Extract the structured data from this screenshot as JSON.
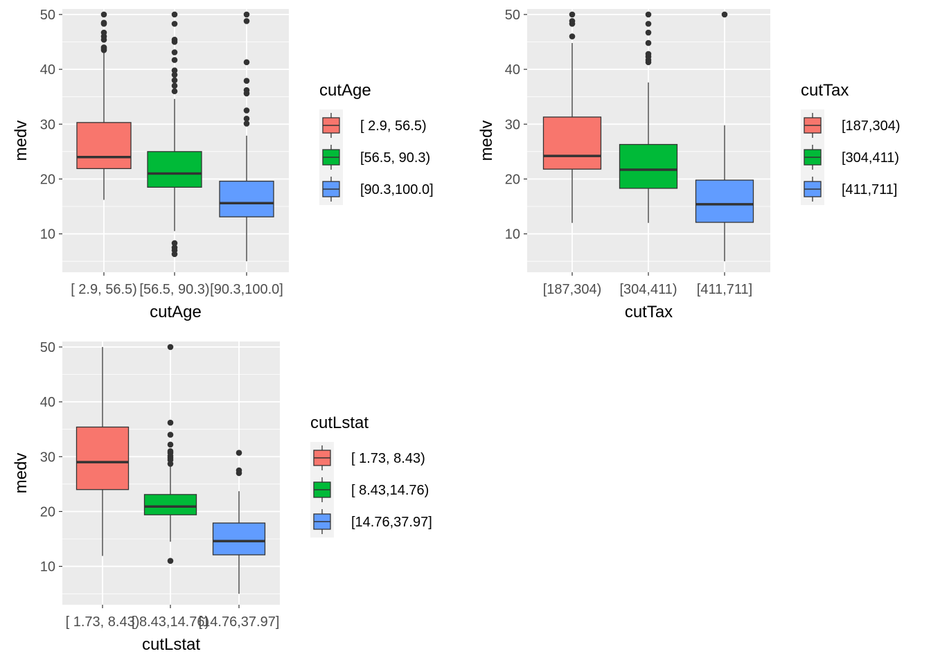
{
  "chart_data": [
    {
      "type": "boxplot",
      "xlabel": "cutAge",
      "ylabel": "medv",
      "ylim": [
        3,
        51
      ],
      "yticks": [
        10,
        20,
        30,
        40,
        50
      ],
      "grid": true,
      "legend": {
        "title": "cutAge",
        "position": "right"
      },
      "categories": [
        "[ 2.9, 56.5)",
        "[56.5, 90.3)",
        "[90.3,100.0]"
      ],
      "colors": [
        "#F8766D",
        "#00BA38",
        "#619CFF"
      ],
      "boxes": [
        {
          "q1": 21.9,
          "median": 24.0,
          "q3": 30.3,
          "whisker_low": 16.2,
          "whisker_high": 43.1,
          "outliers": [
            43.5,
            43.8,
            44.0,
            45.4,
            46.0,
            46.7,
            48.3,
            48.5,
            50.0
          ]
        },
        {
          "q1": 18.5,
          "median": 21.0,
          "q3": 25.0,
          "whisker_low": 10.5,
          "whisker_high": 34.6,
          "outliers": [
            6.3,
            7.0,
            7.5,
            8.3,
            36.0,
            37.0,
            38.0,
            39.0,
            39.8,
            41.7,
            43.1,
            45.0,
            45.4,
            48.3,
            50.0
          ]
        },
        {
          "q1": 13.1,
          "median": 15.6,
          "q3": 19.6,
          "whisker_low": 5.0,
          "whisker_high": 27.9,
          "outliers": [
            30.1,
            31.0,
            32.5,
            35.6,
            36.2,
            37.9,
            41.3,
            48.8,
            50.0
          ]
        }
      ]
    },
    {
      "type": "boxplot",
      "xlabel": "cutTax",
      "ylabel": "medv",
      "ylim": [
        3,
        51
      ],
      "yticks": [
        10,
        20,
        30,
        40,
        50
      ],
      "grid": true,
      "legend": {
        "title": "cutTax",
        "position": "right"
      },
      "categories": [
        "[187,304)",
        "[304,411)",
        "[411,711]"
      ],
      "colors": [
        "#F8766D",
        "#00BA38",
        "#619CFF"
      ],
      "boxes": [
        {
          "q1": 21.8,
          "median": 24.2,
          "q3": 31.3,
          "whisker_low": 12.0,
          "whisker_high": 44.8,
          "outliers": [
            46.0,
            48.3,
            48.8,
            50.0
          ]
        },
        {
          "q1": 18.3,
          "median": 21.7,
          "q3": 26.3,
          "whisker_low": 12.0,
          "whisker_high": 37.6,
          "outliers": [
            41.3,
            41.7,
            42.3,
            42.8,
            44.8,
            46.7,
            48.3,
            50.0
          ]
        },
        {
          "q1": 12.1,
          "median": 15.4,
          "q3": 19.8,
          "whisker_low": 5.0,
          "whisker_high": 29.8,
          "outliers": [
            50.0
          ]
        }
      ]
    },
    {
      "type": "boxplot",
      "xlabel": "cutLstat",
      "ylabel": "medv",
      "ylim": [
        3,
        51
      ],
      "yticks": [
        10,
        20,
        30,
        40,
        50
      ],
      "grid": true,
      "legend": {
        "title": "cutLstat",
        "position": "right"
      },
      "categories": [
        "[ 1.73, 8.43)",
        "[ 8.43,14.76)",
        "[14.76,37.97]"
      ],
      "colors": [
        "#F8766D",
        "#00BA38",
        "#619CFF"
      ],
      "boxes": [
        {
          "q1": 24.0,
          "median": 29.0,
          "q3": 35.4,
          "whisker_low": 11.9,
          "whisker_high": 50.0,
          "outliers": []
        },
        {
          "q1": 19.4,
          "median": 20.9,
          "q3": 23.1,
          "whisker_low": 14.5,
          "whisker_high": 28.5,
          "outliers": [
            11.0,
            28.7,
            29.4,
            29.8,
            30.1,
            30.7,
            31.0,
            32.2,
            34.0,
            36.2,
            50.0
          ]
        },
        {
          "q1": 12.1,
          "median": 14.6,
          "q3": 17.9,
          "whisker_low": 5.0,
          "whisker_high": 23.7,
          "outliers": [
            27.0,
            27.5,
            30.7
          ]
        }
      ]
    }
  ]
}
